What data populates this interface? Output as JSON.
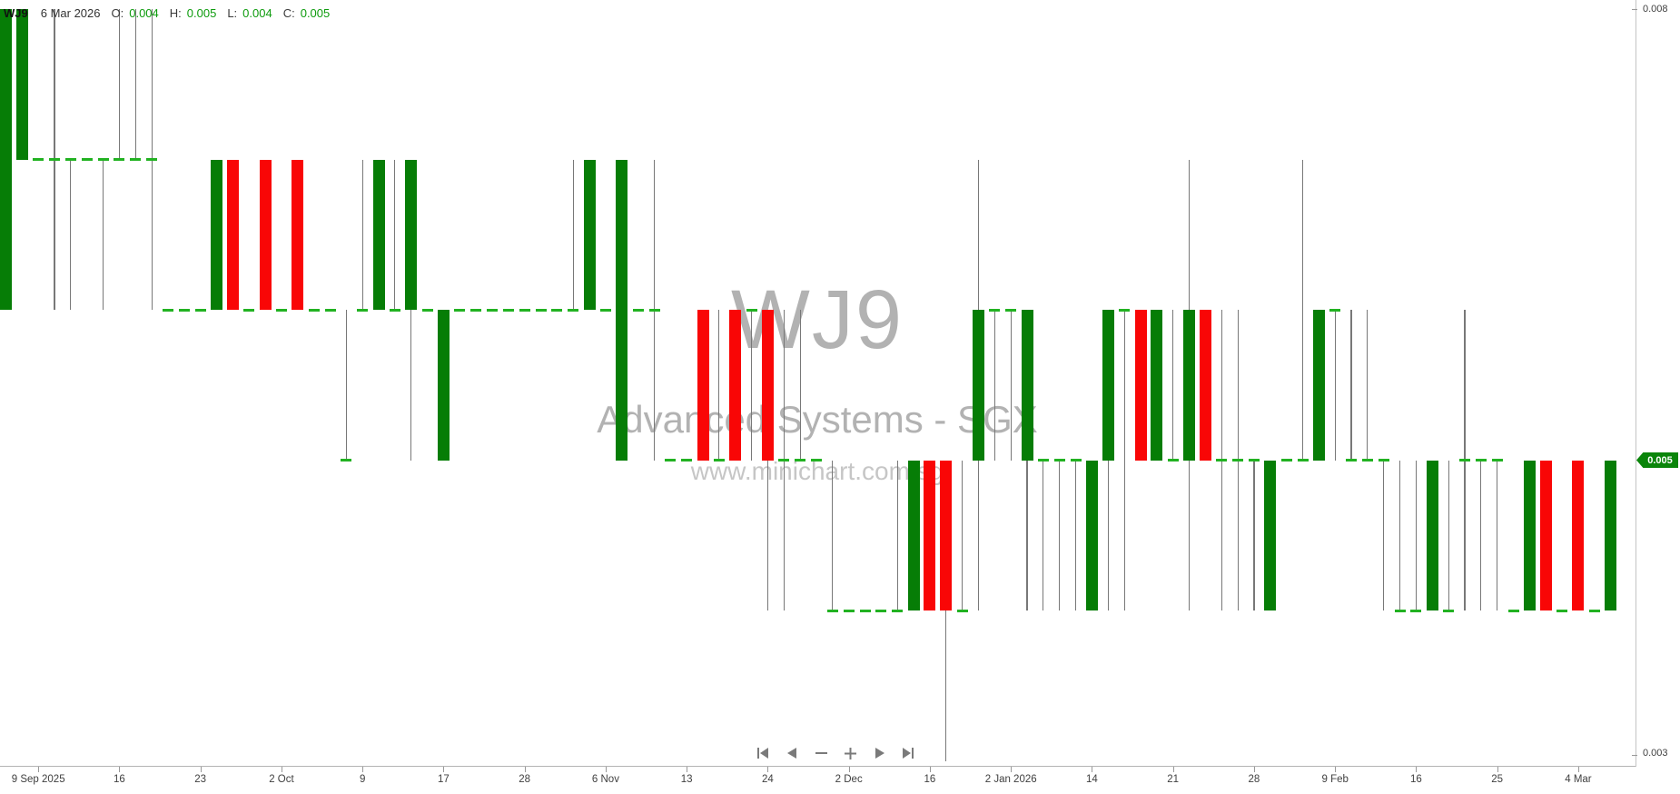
{
  "info_bar": {
    "symbol": "WJ9",
    "date": "6 Mar 2026",
    "open_label": "O:",
    "open": "0.004",
    "high_label": "H:",
    "high": "0.005",
    "low_label": "L:",
    "low": "0.004",
    "close_label": "C:",
    "close": "0.005"
  },
  "watermark": {
    "symbol": "WJ9",
    "company": "Advanced Systems - SGX",
    "website": "www.minichart.com.sg"
  },
  "y_axis": {
    "top_label": "0.008",
    "bottom_label": "0.003",
    "last_price_badge": "0.005"
  },
  "toolbar": {
    "buttons": [
      {
        "name": "skip-to-start-button",
        "icon": "skip-start-icon"
      },
      {
        "name": "step-back-button",
        "icon": "triangle-left-icon"
      },
      {
        "name": "zoom-out-button",
        "icon": "minus-icon"
      },
      {
        "name": "zoom-in-button",
        "icon": "plus-icon"
      },
      {
        "name": "step-forward-button",
        "icon": "triangle-right-icon"
      },
      {
        "name": "skip-to-end-button",
        "icon": "skip-end-icon"
      }
    ]
  },
  "colors": {
    "up_candle": "#067d06",
    "down_candle": "#f90606",
    "doji_dash": "#22b222",
    "wick": "#787878",
    "watermark_text": "#b2b2b2",
    "axis_text": "#404040",
    "badge_green": "#0a850a",
    "info_value_green": "#0d9b0d"
  },
  "chart_data": {
    "type": "candlestick",
    "title": "WJ9",
    "subtitle": "Advanced Systems - SGX",
    "source": "www.minichart.com.sg",
    "last_candle_date": "6 Mar 2026",
    "last_candle_ohlc": [
      0.004,
      0.005,
      0.004,
      0.005
    ],
    "ylim": [
      0.003,
      0.008
    ],
    "y_tick_values": [
      0.008,
      0.003
    ],
    "price_unit": 0.001,
    "grid": false,
    "legend": false,
    "x_tick_labels": [
      "9 Sep 2025",
      "16",
      "23",
      "2 Oct",
      "9",
      "17",
      "28",
      "6 Nov",
      "13",
      "24",
      "2 Dec",
      "16",
      "2 Jan 2026",
      "14",
      "21",
      "28",
      "9 Feb",
      "16",
      "25",
      "4 Mar"
    ],
    "x_tick_candle_indices": [
      2,
      7,
      12,
      17,
      22,
      27,
      32,
      37,
      42,
      47,
      52,
      57,
      62,
      67,
      72,
      77,
      82,
      87,
      92,
      97
    ],
    "candles_ohlc_units": [
      [
        6,
        8,
        6,
        8
      ],
      [
        7,
        8,
        7,
        8
      ],
      [
        7,
        7,
        7,
        7
      ],
      [
        7,
        8,
        6,
        7
      ],
      [
        7,
        7,
        6,
        7
      ],
      [
        7,
        7,
        7,
        7
      ],
      [
        7,
        7,
        6,
        7
      ],
      [
        7,
        8,
        7,
        7
      ],
      [
        7,
        8,
        7,
        7
      ],
      [
        7,
        8,
        6,
        7
      ],
      [
        6,
        6,
        6,
        6
      ],
      [
        6,
        6,
        6,
        6
      ],
      [
        6,
        6,
        6,
        6
      ],
      [
        6,
        7,
        6,
        7
      ],
      [
        7,
        7,
        6,
        6
      ],
      [
        6,
        6,
        6,
        6
      ],
      [
        7,
        7,
        6,
        6
      ],
      [
        6,
        6,
        6,
        6
      ],
      [
        7,
        7,
        6,
        6
      ],
      [
        6,
        6,
        6,
        6
      ],
      [
        6,
        6,
        6,
        6
      ],
      [
        5,
        6,
        5,
        5
      ],
      [
        6,
        7,
        6,
        6
      ],
      [
        6,
        7,
        6,
        7
      ],
      [
        6,
        7,
        6,
        6
      ],
      [
        6,
        7,
        5,
        7
      ],
      [
        6,
        6,
        6,
        6
      ],
      [
        5,
        6,
        5,
        6
      ],
      [
        6,
        6,
        6,
        6
      ],
      [
        6,
        6,
        6,
        6
      ],
      [
        6,
        6,
        6,
        6
      ],
      [
        6,
        6,
        6,
        6
      ],
      [
        6,
        6,
        6,
        6
      ],
      [
        6,
        6,
        6,
        6
      ],
      [
        6,
        6,
        6,
        6
      ],
      [
        6,
        7,
        6,
        6
      ],
      [
        6,
        7,
        6,
        7
      ],
      [
        6,
        6,
        6,
        6
      ],
      [
        5,
        7,
        5,
        7
      ],
      [
        6,
        6,
        6,
        6
      ],
      [
        6,
        7,
        5,
        6
      ],
      [
        5,
        5,
        5,
        5
      ],
      [
        5,
        5,
        5,
        5
      ],
      [
        6,
        6,
        5,
        5
      ],
      [
        5,
        6,
        5,
        5
      ],
      [
        6,
        6,
        5,
        5
      ],
      [
        6,
        6,
        5,
        6
      ],
      [
        6,
        6,
        4,
        5
      ],
      [
        5,
        6,
        4,
        5
      ],
      [
        5,
        6,
        5,
        5
      ],
      [
        5,
        5,
        5,
        5
      ],
      [
        4,
        5,
        4,
        4
      ],
      [
        4,
        4,
        4,
        4
      ],
      [
        4,
        4,
        4,
        4
      ],
      [
        4,
        4,
        4,
        4
      ],
      [
        4,
        5,
        4,
        4
      ],
      [
        4,
        5,
        4,
        5
      ],
      [
        5,
        5,
        4,
        4
      ],
      [
        5,
        5,
        3,
        4
      ],
      [
        4,
        5,
        4,
        4
      ],
      [
        5,
        7,
        4,
        6
      ],
      [
        6,
        6,
        5,
        6
      ],
      [
        6,
        6,
        5,
        6
      ],
      [
        5,
        6,
        4,
        6
      ],
      [
        5,
        5,
        4,
        5
      ],
      [
        5,
        5,
        4,
        5
      ],
      [
        5,
        5,
        4,
        5
      ],
      [
        4,
        5,
        4,
        5
      ],
      [
        5,
        6,
        4,
        6
      ],
      [
        6,
        6,
        4,
        6
      ],
      [
        6,
        6,
        5,
        5
      ],
      [
        5,
        6,
        5,
        6
      ],
      [
        5,
        6,
        5,
        5
      ],
      [
        5,
        7,
        4,
        6
      ],
      [
        6,
        6,
        5,
        5
      ],
      [
        5,
        6,
        4,
        5
      ],
      [
        5,
        6,
        4,
        5
      ],
      [
        5,
        5,
        4,
        5
      ],
      [
        4,
        5,
        4,
        5
      ],
      [
        5,
        5,
        5,
        5
      ],
      [
        5,
        7,
        5,
        5
      ],
      [
        5,
        6,
        5,
        6
      ],
      [
        6,
        6,
        5,
        6
      ],
      [
        5,
        6,
        5,
        5
      ],
      [
        5,
        6,
        5,
        5
      ],
      [
        5,
        5,
        4,
        5
      ],
      [
        4,
        5,
        4,
        4
      ],
      [
        4,
        5,
        4,
        4
      ],
      [
        4,
        5,
        4,
        5
      ],
      [
        4,
        5,
        4,
        4
      ],
      [
        5,
        6,
        4,
        5
      ],
      [
        5,
        5,
        4,
        5
      ],
      [
        5,
        5,
        4,
        5
      ],
      [
        4,
        4,
        4,
        4
      ],
      [
        4,
        5,
        4,
        5
      ],
      [
        5,
        5,
        4,
        4
      ],
      [
        4,
        4,
        4,
        4
      ],
      [
        5,
        5,
        4,
        4
      ],
      [
        4,
        4,
        4,
        4
      ],
      [
        4,
        5,
        4,
        5
      ]
    ]
  }
}
